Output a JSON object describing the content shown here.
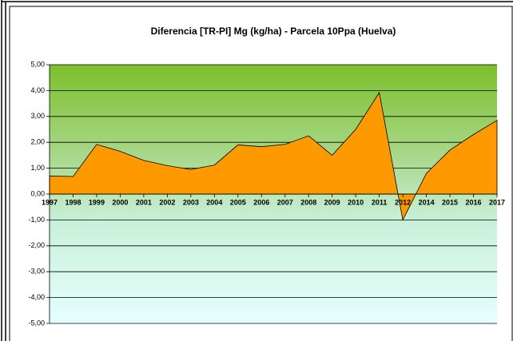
{
  "chart_data": {
    "type": "area",
    "title": "Diferencia [TR-PI] Mg (kg/ha) - Parcela 10Ppa (Huelva)",
    "categories": [
      "1997",
      "1998",
      "1999",
      "2000",
      "2001",
      "2002",
      "2003",
      "2004",
      "2005",
      "2006",
      "2007",
      "2008",
      "2009",
      "2010",
      "2011",
      "2012",
      "2014",
      "2015",
      "2016",
      "2017"
    ],
    "values": [
      0.7,
      0.68,
      1.92,
      1.65,
      1.3,
      1.1,
      0.95,
      1.12,
      1.9,
      1.83,
      1.92,
      2.25,
      1.5,
      2.5,
      3.92,
      -1.0,
      0.8,
      1.7,
      2.3,
      2.85
    ],
    "color": "#ff9900",
    "ylim": [
      -5,
      5
    ],
    "yticks": [
      {
        "value": -5,
        "label": "-5,00"
      },
      {
        "value": -4,
        "label": "-4,00"
      },
      {
        "value": -3,
        "label": "-3,00"
      },
      {
        "value": -2,
        "label": "-2,00"
      },
      {
        "value": -1,
        "label": "-1,00"
      },
      {
        "value": 0,
        "label": "0,00"
      },
      {
        "value": 1,
        "label": "1,00"
      },
      {
        "value": 2,
        "label": "2,00"
      },
      {
        "value": 3,
        "label": "3,00"
      },
      {
        "value": 4,
        "label": "4,00"
      },
      {
        "value": 5,
        "label": "5,00"
      }
    ],
    "grid": true
  }
}
